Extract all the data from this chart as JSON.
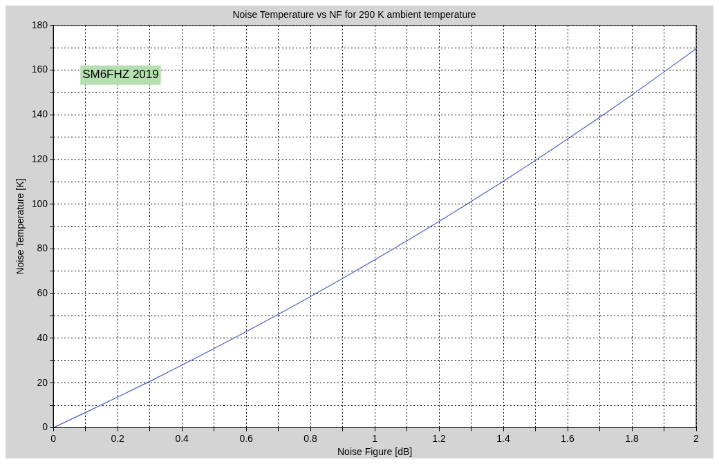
{
  "chart_data": {
    "type": "line",
    "title": "Noise Temperature vs NF for 290 K ambient temperature",
    "xlabel": "Noise Figure [dB]",
    "ylabel": "Noise Temperature [K]",
    "annotations": [
      "SM6FHZ 2019"
    ],
    "x": [
      0,
      0.1,
      0.2,
      0.3,
      0.4,
      0.5,
      0.6,
      0.7,
      0.8,
      0.9,
      1.0,
      1.1,
      1.2,
      1.3,
      1.4,
      1.5,
      1.6,
      1.7,
      1.8,
      1.9,
      2.0
    ],
    "series": [
      {
        "color": "#4a5cc0",
        "values": [
          0,
          6.8,
          13.7,
          20.7,
          28.0,
          35.4,
          43.0,
          50.7,
          58.7,
          66.8,
          75.1,
          83.6,
          92.3,
          101.2,
          110.3,
          119.6,
          129.2,
          138.9,
          148.9,
          159.2,
          169.6
        ]
      }
    ],
    "xlim": [
      0,
      2
    ],
    "ylim": [
      0,
      180
    ],
    "xticks": [
      0,
      {
        "value": 0.1,
        "label": null
      },
      0.2,
      {
        "value": 0.3,
        "label": null
      },
      0.4,
      {
        "value": 0.5,
        "label": null
      },
      0.6,
      {
        "value": 0.7,
        "label": null
      },
      0.8,
      {
        "value": 0.9,
        "label": null
      },
      1,
      {
        "value": 1.1,
        "label": null
      },
      1.2,
      {
        "value": 1.3,
        "label": null
      },
      1.4,
      {
        "value": 1.5,
        "label": null
      },
      1.6,
      {
        "value": 1.7,
        "label": null
      },
      1.8,
      {
        "value": 1.9,
        "label": null
      },
      2
    ],
    "yticks": [
      0,
      {
        "value": 10,
        "label": null
      },
      20,
      {
        "value": 30,
        "label": null
      },
      40,
      {
        "value": 50,
        "label": null
      },
      60,
      {
        "value": 70,
        "label": null
      },
      80,
      {
        "value": 90,
        "label": null
      },
      100,
      {
        "value": 110,
        "label": null
      },
      120,
      {
        "value": 130,
        "label": null
      },
      140,
      {
        "value": 150,
        "label": null
      },
      160,
      {
        "value": 170,
        "label": null
      },
      180
    ],
    "grid": true,
    "legend": false,
    "marker": "none",
    "line_style": "solid"
  }
}
